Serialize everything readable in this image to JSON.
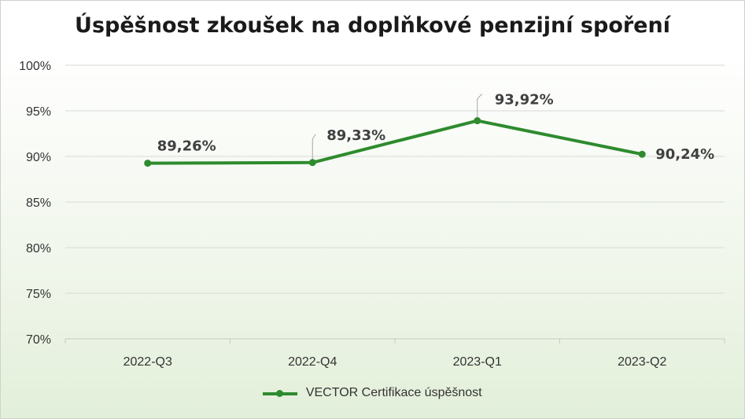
{
  "chart_data": {
    "type": "line",
    "title": "Úspěšnost zkoušek na doplňkové penzijní spoření",
    "categories": [
      "2022-Q3",
      "2022-Q4",
      "2023-Q1",
      "2023-Q2"
    ],
    "series": [
      {
        "name": "VECTOR Certifikace úspěšnost",
        "values": [
          89.26,
          89.33,
          93.92,
          90.24
        ],
        "data_labels": [
          "89,26%",
          "89,33%",
          "93,92%",
          "90,24%"
        ],
        "color": "#2e8b2e"
      }
    ],
    "ylim": [
      70,
      100
    ],
    "yticks": [
      70,
      75,
      80,
      85,
      90,
      95,
      100
    ],
    "ytick_labels": [
      "70%",
      "75%",
      "80%",
      "85%",
      "90%",
      "95%",
      "100%"
    ],
    "grid": true,
    "legend_position": "bottom",
    "xlabel": "",
    "ylabel": ""
  }
}
